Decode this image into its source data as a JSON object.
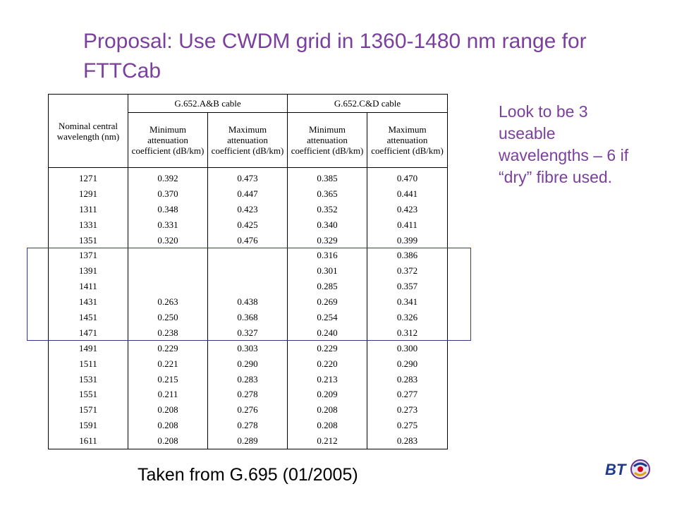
{
  "title": "Proposal: Use CWDM grid in 1360-1480 nm range for FTTCab",
  "side_note": "Look to be 3 useable wavelengths – 6 if “dry” fibre used.",
  "caption": "Taken from G.695 (01/2005)",
  "logo_text": "BT",
  "table": {
    "col_wavelength": "Nominal central wavelength (nm)",
    "group_ab": "G.652.A&B cable",
    "group_cd": "G.652.C&D cable",
    "min_label": "Minimum attenuation coefficient (dB/km)",
    "max_label": "Maximum attenuation coefficient (dB/km)",
    "rows": [
      {
        "wl": "1271",
        "ab_min": "0.392",
        "ab_max": "0.473",
        "cd_min": "0.385",
        "cd_max": "0.470"
      },
      {
        "wl": "1291",
        "ab_min": "0.370",
        "ab_max": "0.447",
        "cd_min": "0.365",
        "cd_max": "0.441"
      },
      {
        "wl": "1311",
        "ab_min": "0.348",
        "ab_max": "0.423",
        "cd_min": "0.352",
        "cd_max": "0.423"
      },
      {
        "wl": "1331",
        "ab_min": "0.331",
        "ab_max": "0.425",
        "cd_min": "0.340",
        "cd_max": "0.411"
      },
      {
        "wl": "1351",
        "ab_min": "0.320",
        "ab_max": "0.476",
        "cd_min": "0.329",
        "cd_max": "0.399"
      },
      {
        "wl": "1371",
        "ab_min": "",
        "ab_max": "",
        "cd_min": "0.316",
        "cd_max": "0.386"
      },
      {
        "wl": "1391",
        "ab_min": "",
        "ab_max": "",
        "cd_min": "0.301",
        "cd_max": "0.372"
      },
      {
        "wl": "1411",
        "ab_min": "",
        "ab_max": "",
        "cd_min": "0.285",
        "cd_max": "0.357"
      },
      {
        "wl": "1431",
        "ab_min": "0.263",
        "ab_max": "0.438",
        "cd_min": "0.269",
        "cd_max": "0.341"
      },
      {
        "wl": "1451",
        "ab_min": "0.250",
        "ab_max": "0.368",
        "cd_min": "0.254",
        "cd_max": "0.326"
      },
      {
        "wl": "1471",
        "ab_min": "0.238",
        "ab_max": "0.327",
        "cd_min": "0.240",
        "cd_max": "0.312"
      },
      {
        "wl": "1491",
        "ab_min": "0.229",
        "ab_max": "0.303",
        "cd_min": "0.229",
        "cd_max": "0.300"
      },
      {
        "wl": "1511",
        "ab_min": "0.221",
        "ab_max": "0.290",
        "cd_min": "0.220",
        "cd_max": "0.290"
      },
      {
        "wl": "1531",
        "ab_min": "0.215",
        "ab_max": "0.283",
        "cd_min": "0.213",
        "cd_max": "0.283"
      },
      {
        "wl": "1551",
        "ab_min": "0.211",
        "ab_max": "0.278",
        "cd_min": "0.209",
        "cd_max": "0.277"
      },
      {
        "wl": "1571",
        "ab_min": "0.208",
        "ab_max": "0.276",
        "cd_min": "0.208",
        "cd_max": "0.273"
      },
      {
        "wl": "1591",
        "ab_min": "0.208",
        "ab_max": "0.278",
        "cd_min": "0.208",
        "cd_max": "0.275"
      },
      {
        "wl": "1611",
        "ab_min": "0.208",
        "ab_max": "0.289",
        "cd_min": "0.212",
        "cd_max": "0.283"
      }
    ]
  },
  "colors": {
    "title": "#7b3f9e",
    "highlight_box": "#2e3a8c",
    "logo_blue": "#1f3a8a",
    "logo_purple": "#6b2f8f"
  }
}
